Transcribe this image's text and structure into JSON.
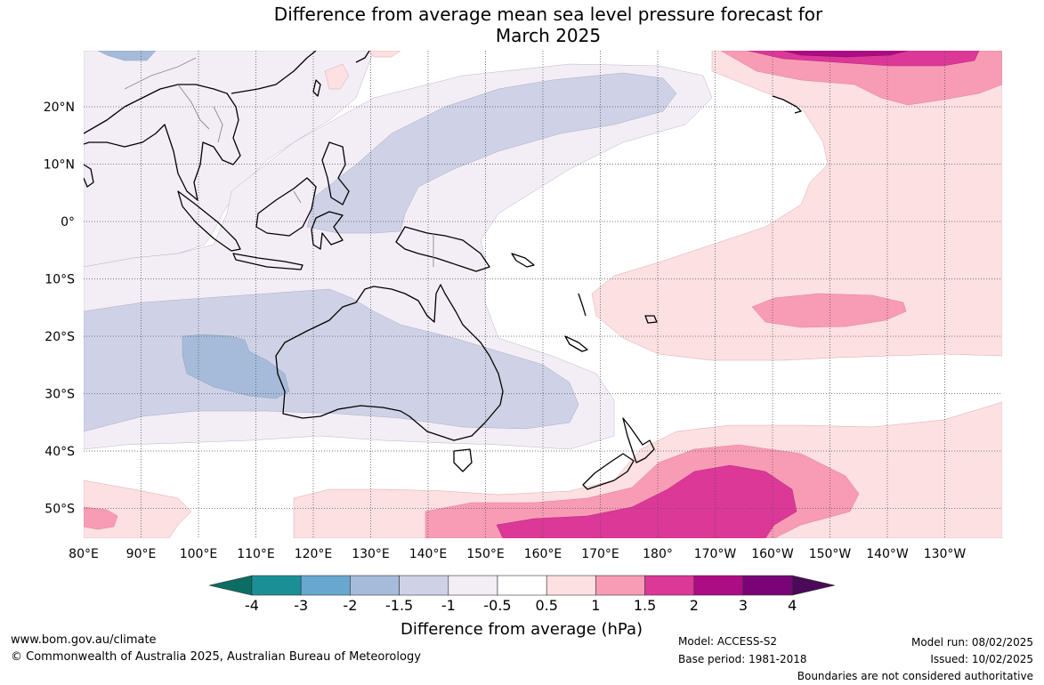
{
  "title": {
    "line1": "Difference from average mean sea level pressure forecast for",
    "line2": "March 2025"
  },
  "map": {
    "lon_labels": [
      "80°E",
      "90°E",
      "100°E",
      "110°E",
      "120°E",
      "130°E",
      "140°E",
      "150°E",
      "160°E",
      "170°E",
      "180°",
      "170°W",
      "160°W",
      "150°W",
      "140°W",
      "130°W"
    ],
    "lat_labels": [
      "20°N",
      "10°N",
      "0°",
      "10°S",
      "20°S",
      "30°S",
      "40°S",
      "50°S"
    ]
  },
  "legend": {
    "ticks": [
      "-4",
      "-3",
      "-2",
      "-1.5",
      "-1",
      "-0.5",
      "0.5",
      "1",
      "1.5",
      "2",
      "3",
      "4"
    ],
    "colors": [
      "#0c6e63",
      "#1a9096",
      "#68a8d0",
      "#a6bbd9",
      "#cfd2e6",
      "#f3eef6",
      "#ffffff",
      "#fde0e2",
      "#f89cb6",
      "#dc3898",
      "#ac0c84",
      "#7a0477",
      "#4a0a58"
    ],
    "label": "Difference from average (hPa)"
  },
  "footer": {
    "website": "www.bom.gov.au/climate",
    "copyright": "© Commonwealth of Australia 2025, Australian Bureau of Meteorology",
    "model": "Model: ACCESS-S2",
    "base_period": "Base period: 1981-2018",
    "model_run": "Model run: 08/02/2025",
    "issued": "Issued: 10/02/2025",
    "disclaimer": "Boundaries are not considered authoritative"
  }
}
